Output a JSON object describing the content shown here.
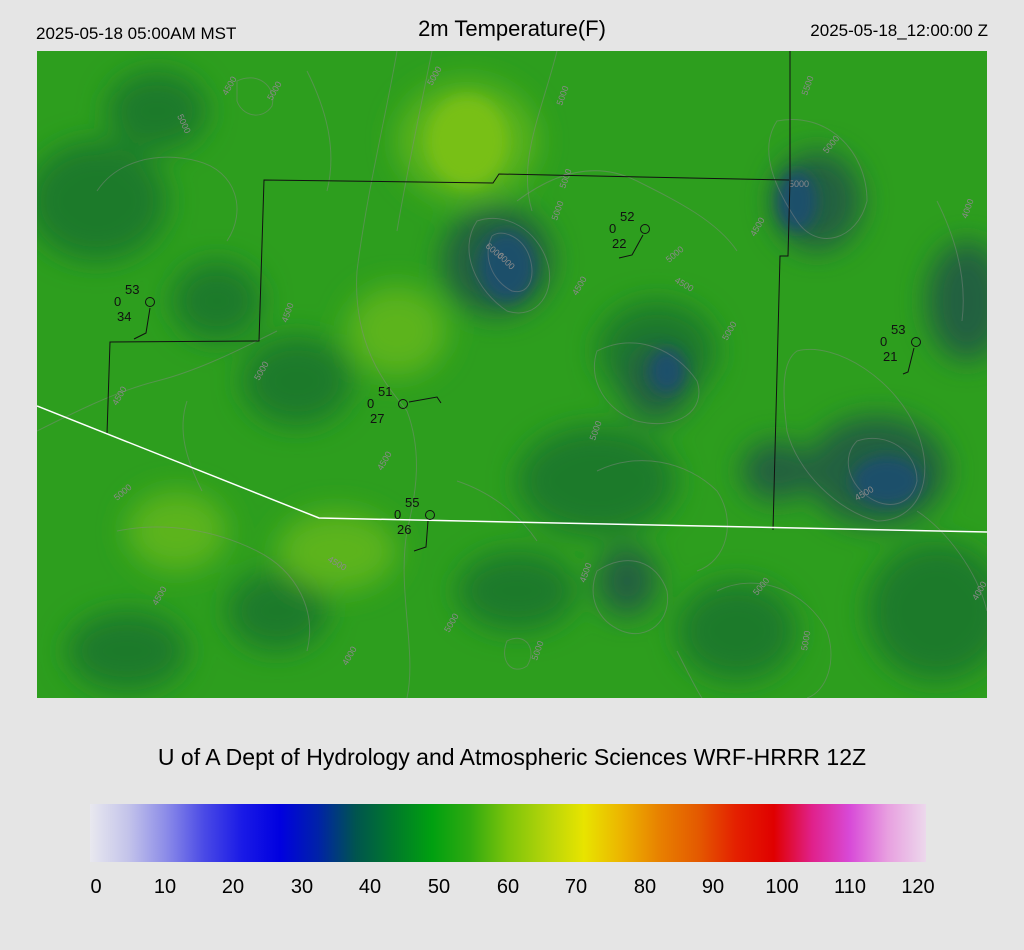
{
  "header": {
    "local_time": "2025-05-18 05:00AM MST",
    "title": "2m Temperature(F)",
    "valid_time": "2025-05-18_12:00:00 Z"
  },
  "credit": "U of A Dept of Hydrology and Atmospheric Sciences WRF-HRRR 12Z",
  "colorbar": {
    "ticks": [
      "0",
      "10",
      "20",
      "30",
      "40",
      "50",
      "60",
      "70",
      "80",
      "90",
      "100",
      "110",
      "120"
    ],
    "stops": [
      "#e8e8ef",
      "#c4c4ea",
      "#8c8ce8",
      "#4a4ae6",
      "#1a1ae6",
      "#0000e0",
      "#0022a8",
      "#00554e",
      "#007a2a",
      "#00a010",
      "#30aa10",
      "#7cc40a",
      "#b4d40a",
      "#e8e400",
      "#ecb400",
      "#e88000",
      "#e45a00",
      "#e42000",
      "#e00000",
      "#e0208a",
      "#d84ad8",
      "#e8a0e0",
      "#ecd8ec"
    ]
  },
  "map_colors": {
    "base": "#2d9e1e",
    "dark": "#1f7a2c",
    "cool": "#236040",
    "coldest": "#1e4f6a",
    "warm": "#5cb41a",
    "warmest": "#78c012"
  },
  "elevation_labels": [
    "5000",
    "4500",
    "5000",
    "4500",
    "6000",
    "5000",
    "5000",
    "5000",
    "5000",
    "4500",
    "5000",
    "4500",
    "5000",
    "6000",
    "5500",
    "5000",
    "5000",
    "4000",
    "4500",
    "5000",
    "4500",
    "4000",
    "4500",
    "5000",
    "4500",
    "4500",
    "5000",
    "5000",
    "4500",
    "4000",
    "5000",
    "5000",
    "4500",
    "5000"
  ],
  "stations": [
    {
      "temp": "53",
      "cloud": "0",
      "dew": "34"
    },
    {
      "temp": "52",
      "cloud": "0",
      "dew": "22"
    },
    {
      "temp": "51",
      "cloud": "0",
      "dew": "27"
    },
    {
      "temp": "55",
      "cloud": "0",
      "dew": "26"
    },
    {
      "temp": "53",
      "cloud": "0",
      "dew": "21"
    }
  ]
}
